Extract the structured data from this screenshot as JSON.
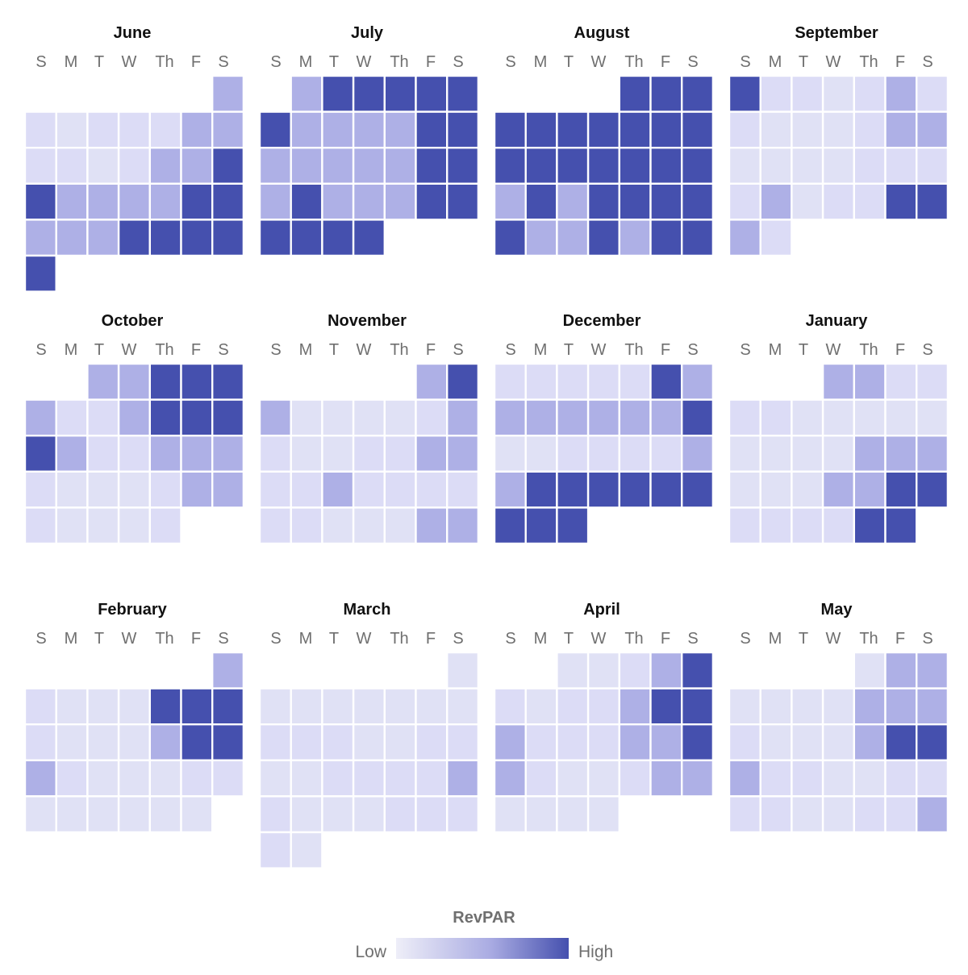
{
  "chart_data": {
    "type": "heatmap",
    "title": "",
    "weekday_labels": [
      "S",
      "M",
      "T",
      "W",
      "Th",
      "F",
      "S"
    ],
    "scale": {
      "min": 0,
      "max": 4,
      "colors": [
        "#e0e1f5",
        "#dcdcf6",
        "#aeb0e6",
        "#4550ae",
        "#4550ae"
      ]
    },
    "legend": {
      "title": "RevPAR",
      "low_label": "Low",
      "high_label": "High",
      "placement": "bottom-center"
    },
    "months": [
      {
        "name": "June",
        "weeks": [
          [
            null,
            null,
            null,
            null,
            null,
            null,
            2
          ],
          [
            1,
            0,
            1,
            1,
            1,
            2,
            2
          ],
          [
            1,
            1,
            0,
            1,
            2,
            2,
            4
          ],
          [
            4,
            2,
            2,
            2,
            2,
            4,
            4
          ],
          [
            2,
            2,
            2,
            4,
            4,
            4,
            4
          ],
          [
            4,
            null,
            null,
            null,
            null,
            null,
            null
          ]
        ]
      },
      {
        "name": "July",
        "weeks": [
          [
            null,
            2,
            4,
            4,
            4,
            4,
            4
          ],
          [
            4,
            2,
            2,
            2,
            2,
            4,
            4
          ],
          [
            2,
            2,
            2,
            2,
            2,
            4,
            4
          ],
          [
            2,
            4,
            2,
            2,
            2,
            4,
            4
          ],
          [
            4,
            4,
            4,
            4,
            null,
            null,
            null
          ]
        ]
      },
      {
        "name": "August",
        "weeks": [
          [
            null,
            null,
            null,
            null,
            4,
            4,
            4
          ],
          [
            4,
            4,
            4,
            4,
            4,
            4,
            4
          ],
          [
            4,
            4,
            4,
            4,
            4,
            4,
            4
          ],
          [
            2,
            4,
            2,
            4,
            4,
            4,
            4
          ],
          [
            4,
            2,
            2,
            4,
            2,
            4,
            4
          ]
        ]
      },
      {
        "name": "September",
        "weeks": [
          [
            4,
            1,
            1,
            0,
            1,
            2,
            1
          ],
          [
            1,
            0,
            0,
            0,
            1,
            2,
            2
          ],
          [
            0,
            0,
            0,
            0,
            1,
            1,
            1
          ],
          [
            1,
            2,
            0,
            1,
            1,
            4,
            4
          ],
          [
            2,
            1,
            null,
            null,
            null,
            null,
            null
          ]
        ]
      },
      {
        "name": "October",
        "weeks": [
          [
            null,
            null,
            2,
            2,
            4,
            4,
            4
          ],
          [
            2,
            1,
            1,
            2,
            4,
            4,
            4
          ],
          [
            4,
            2,
            1,
            1,
            2,
            2,
            2
          ],
          [
            1,
            0,
            0,
            0,
            1,
            2,
            2
          ],
          [
            1,
            0,
            0,
            0,
            1,
            null,
            null
          ]
        ]
      },
      {
        "name": "November",
        "weeks": [
          [
            null,
            null,
            null,
            null,
            null,
            2,
            4
          ],
          [
            2,
            0,
            0,
            0,
            0,
            1,
            2
          ],
          [
            1,
            0,
            0,
            1,
            1,
            2,
            2
          ],
          [
            1,
            1,
            2,
            1,
            1,
            1,
            1
          ],
          [
            1,
            1,
            0,
            0,
            0,
            2,
            2
          ]
        ]
      },
      {
        "name": "December",
        "weeks": [
          [
            1,
            1,
            1,
            1,
            1,
            4,
            2
          ],
          [
            2,
            2,
            2,
            2,
            2,
            2,
            4
          ],
          [
            0,
            0,
            1,
            1,
            1,
            1,
            2
          ],
          [
            2,
            4,
            4,
            4,
            4,
            4,
            4
          ],
          [
            4,
            4,
            4,
            null,
            null,
            null,
            null
          ]
        ]
      },
      {
        "name": "January",
        "weeks": [
          [
            null,
            null,
            null,
            2,
            2,
            1,
            1
          ],
          [
            1,
            1,
            0,
            0,
            0,
            0,
            0
          ],
          [
            0,
            0,
            0,
            0,
            2,
            2,
            2
          ],
          [
            0,
            0,
            0,
            2,
            2,
            4,
            4
          ],
          [
            1,
            1,
            1,
            1,
            4,
            4,
            null
          ]
        ]
      },
      {
        "name": "February",
        "weeks": [
          [
            null,
            null,
            null,
            null,
            null,
            null,
            2
          ],
          [
            1,
            0,
            0,
            0,
            4,
            4,
            4
          ],
          [
            1,
            0,
            0,
            0,
            2,
            4,
            4
          ],
          [
            2,
            1,
            0,
            0,
            0,
            1,
            1
          ],
          [
            0,
            0,
            0,
            0,
            0,
            0,
            null
          ]
        ]
      },
      {
        "name": "March",
        "weeks": [
          [
            null,
            null,
            null,
            null,
            null,
            null,
            0
          ],
          [
            0,
            0,
            0,
            0,
            0,
            0,
            0
          ],
          [
            1,
            1,
            1,
            0,
            0,
            1,
            1
          ],
          [
            0,
            0,
            1,
            1,
            1,
            1,
            2
          ],
          [
            1,
            0,
            0,
            0,
            1,
            1,
            1
          ],
          [
            1,
            0,
            null,
            null,
            null,
            null,
            null
          ]
        ]
      },
      {
        "name": "April",
        "weeks": [
          [
            null,
            null,
            0,
            0,
            1,
            2,
            4
          ],
          [
            1,
            0,
            1,
            1,
            2,
            4,
            4
          ],
          [
            2,
            1,
            1,
            1,
            2,
            2,
            4
          ],
          [
            2,
            1,
            0,
            0,
            1,
            2,
            2
          ],
          [
            0,
            0,
            0,
            0,
            null,
            null,
            null
          ]
        ]
      },
      {
        "name": "May",
        "weeks": [
          [
            null,
            null,
            null,
            null,
            0,
            2,
            2
          ],
          [
            0,
            0,
            0,
            0,
            2,
            2,
            2
          ],
          [
            1,
            0,
            0,
            0,
            2,
            4,
            4
          ],
          [
            2,
            1,
            1,
            0,
            0,
            1,
            1
          ],
          [
            1,
            1,
            0,
            0,
            1,
            1,
            2
          ]
        ]
      }
    ]
  }
}
